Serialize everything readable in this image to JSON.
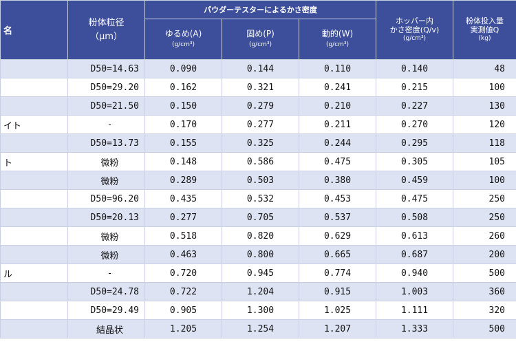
{
  "header": {
    "name_col": "名",
    "particle_size": "粉体粒径",
    "particle_unit": "（μm）",
    "group_title": "パウダーテスターによるかさ密度",
    "loose": "ゆるめ(A)",
    "packed": "固め(P)",
    "dynamic": "動的(W)",
    "density_unit": "(g/cm³)",
    "hopper_line1": "ホッパー内",
    "hopper_line2": "かさ密度(Q/v)",
    "hopper_unit": "(g/cm³)",
    "charge_line1": "粉体投入量",
    "charge_line2": "実測値Q",
    "charge_unit": "(kg)"
  },
  "rows": [
    {
      "name": "",
      "size": "D50=14.63",
      "loose": "0.090",
      "packed": "0.144",
      "dynamic": "0.110",
      "hopper": "0.140",
      "charge": "48"
    },
    {
      "name": "",
      "size": "D50=29.20",
      "loose": "0.162",
      "packed": "0.321",
      "dynamic": "0.241",
      "hopper": "0.215",
      "charge": "100"
    },
    {
      "name": "",
      "size": "D50=21.50",
      "loose": "0.150",
      "packed": "0.279",
      "dynamic": "0.210",
      "hopper": "0.227",
      "charge": "130"
    },
    {
      "name": "イト",
      "size": "-",
      "loose": "0.170",
      "packed": "0.277",
      "dynamic": "0.211",
      "hopper": "0.270",
      "charge": "120"
    },
    {
      "name": "",
      "size": "D50=13.73",
      "loose": "0.155",
      "packed": "0.325",
      "dynamic": "0.244",
      "hopper": "0.295",
      "charge": "118"
    },
    {
      "name": "ト",
      "size": "微粉",
      "loose": "0.148",
      "packed": "0.586",
      "dynamic": "0.475",
      "hopper": "0.305",
      "charge": "105"
    },
    {
      "name": "",
      "size": "微粉",
      "loose": "0.289",
      "packed": "0.503",
      "dynamic": "0.380",
      "hopper": "0.459",
      "charge": "100"
    },
    {
      "name": "",
      "size": "D50=96.20",
      "loose": "0.435",
      "packed": "0.532",
      "dynamic": "0.453",
      "hopper": "0.475",
      "charge": "250"
    },
    {
      "name": "",
      "size": "D50=20.13",
      "loose": "0.277",
      "packed": "0.705",
      "dynamic": "0.537",
      "hopper": "0.508",
      "charge": "250"
    },
    {
      "name": "",
      "size": "微粉",
      "loose": "0.518",
      "packed": "0.820",
      "dynamic": "0.629",
      "hopper": "0.613",
      "charge": "260"
    },
    {
      "name": "",
      "size": "微粉",
      "loose": "0.463",
      "packed": "0.800",
      "dynamic": "0.665",
      "hopper": "0.687",
      "charge": "200"
    },
    {
      "name": "ル",
      "size": "-",
      "loose": "0.720",
      "packed": "0.945",
      "dynamic": "0.774",
      "hopper": "0.940",
      "charge": "500"
    },
    {
      "name": "",
      "size": "D50=24.78",
      "loose": "0.722",
      "packed": "1.204",
      "dynamic": "0.915",
      "hopper": "1.003",
      "charge": "360"
    },
    {
      "name": "",
      "size": "D50=29.49",
      "loose": "0.905",
      "packed": "1.300",
      "dynamic": "1.025",
      "hopper": "1.111",
      "charge": "320"
    },
    {
      "name": "",
      "size": "結晶状",
      "loose": "1.205",
      "packed": "1.254",
      "dynamic": "1.207",
      "hopper": "1.333",
      "charge": "500"
    }
  ]
}
